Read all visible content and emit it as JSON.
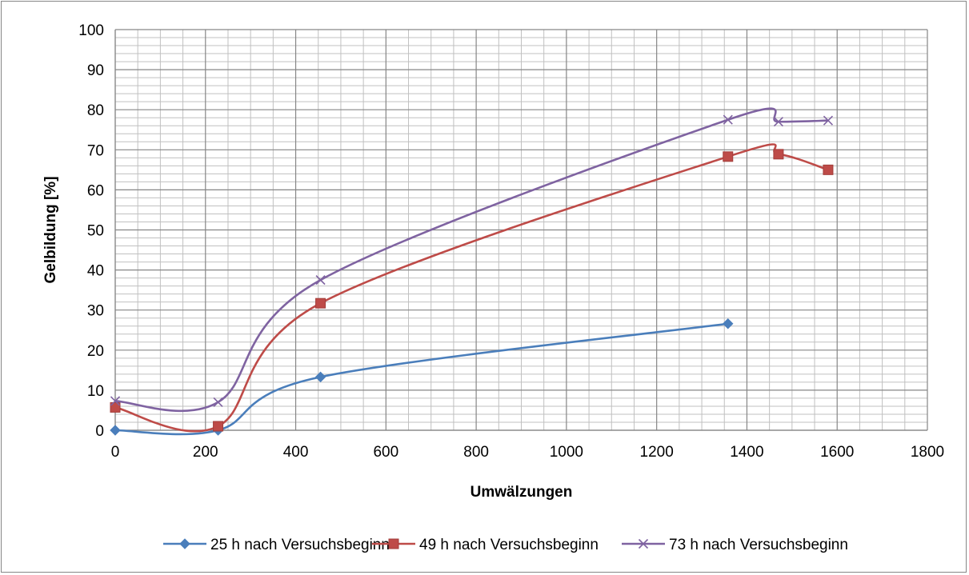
{
  "chart_data": {
    "type": "line",
    "title": "",
    "xlabel": "Umwälzungen",
    "ylabel": "Gelbildung [%]",
    "xlim": [
      0,
      1800
    ],
    "ylim": [
      0,
      100
    ],
    "x_ticks": [
      0,
      200,
      400,
      600,
      800,
      1000,
      1200,
      1400,
      1600,
      1800
    ],
    "y_ticks": [
      0,
      10,
      20,
      30,
      40,
      50,
      60,
      70,
      80,
      90,
      100
    ],
    "x_minor_step": 50,
    "y_minor_step": 2,
    "grid": true,
    "smoothed": true,
    "legend_position": "bottom",
    "series": [
      {
        "name": "25 h nach Versuchsbeginn",
        "color": "#4a7ebb",
        "marker": "diamond",
        "x": [
          0,
          228,
          455,
          1358
        ],
        "y": [
          0,
          0,
          13.3,
          26.6
        ]
      },
      {
        "name": "49 h nach Versuchsbeginn",
        "color": "#be4b48",
        "marker": "square",
        "x": [
          0,
          228,
          455,
          1358,
          1470,
          1580
        ],
        "y": [
          5.7,
          1,
          31.7,
          68.3,
          68.9,
          65
        ]
      },
      {
        "name": "73 h nach Versuchsbeginn",
        "color": "#7f63a1",
        "marker": "x",
        "x": [
          0,
          228,
          455,
          1358,
          1470,
          1580
        ],
        "y": [
          7.3,
          7,
          37.5,
          77.5,
          77,
          77.3
        ]
      }
    ]
  }
}
